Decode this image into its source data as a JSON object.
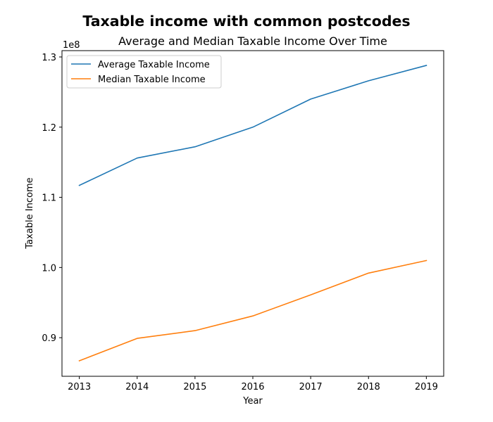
{
  "chart_data": {
    "type": "line",
    "suptitle": "Taxable income with common postcodes",
    "title": "Average and Median Taxable Income Over Time",
    "xlabel": "Year",
    "ylabel": "Taxable Income",
    "y_offset_label": "1e8",
    "x": [
      2013,
      2014,
      2015,
      2016,
      2017,
      2018,
      2019
    ],
    "x_tick_labels": [
      "2013",
      "2014",
      "2015",
      "2016",
      "2017",
      "2018",
      "2019"
    ],
    "y_ticks": [
      0.9,
      1.0,
      1.1,
      1.2,
      1.3
    ],
    "y_tick_labels": [
      "0.9",
      "1.0",
      "1.1",
      "1.2",
      "1.3"
    ],
    "ylim": [
      0.845,
      1.309
    ],
    "xlim": [
      2012.7,
      2019.3
    ],
    "grid": false,
    "legend_position": "top-left",
    "series": [
      {
        "name": "Average Taxable Income",
        "color": "#1f77b4",
        "values": [
          1.117,
          1.156,
          1.172,
          1.2,
          1.24,
          1.266,
          1.288
        ]
      },
      {
        "name": "Median Taxable Income",
        "color": "#ff7f0e",
        "values": [
          0.867,
          0.899,
          0.91,
          0.931,
          0.961,
          0.992,
          1.01
        ]
      }
    ]
  }
}
